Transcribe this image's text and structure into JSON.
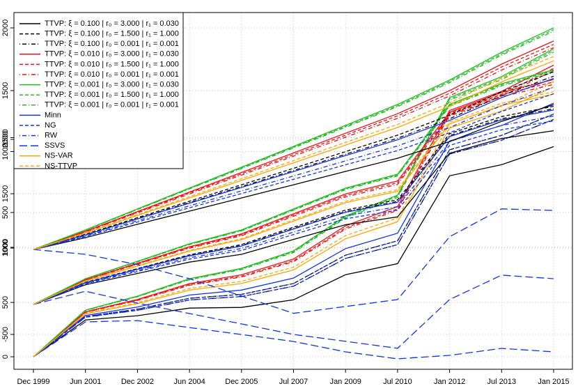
{
  "chart_data": [
    {
      "type": "line",
      "categories": [
        "Dec 1999",
        "Jun 2001",
        "Dec 2002",
        "Jun 2004",
        "Dec 2005",
        "Jul 2007",
        "Jan 2009",
        "Jul 2010",
        "Jan 2012",
        "Jul 2013",
        "Jan 2015"
      ],
      "ylim": [
        -115,
        3167
      ],
      "yticks": [
        0,
        500,
        1000,
        1500,
        2000
      ],
      "grid": true,
      "legend": "top-left",
      "series": [
        {
          "name": "TTVP: ξ = 0.100 | r₀ = 3.000 | r₁ = 0.030",
          "color": "#000000",
          "dash": "solid",
          "values": [
            0,
            339,
            378,
            448,
            454,
            524,
            755,
            857,
            1665,
            1767,
            1933
          ]
        },
        {
          "name": "TTVP: ξ = 0.100 | r₀ = 1.500 | r₁ = 1.000",
          "color": "#000000",
          "dash": "dashed",
          "values": [
            0,
            369,
            438,
            538,
            574,
            674,
            935,
            1067,
            1905,
            2037,
            2233
          ]
        },
        {
          "name": "TTVP: ξ = 0.100 | r₀ = 0.001 | r₁ = 0.001",
          "color": "#000000",
          "dash": "dotdash",
          "values": [
            0,
            364,
            428,
            523,
            554,
            649,
            905,
            1032,
            1865,
            1992,
            2183
          ]
        },
        {
          "name": "TTVP: ξ = 0.010 | r₀ = 3.000 | r₁ = 0.030",
          "color": "#ee1111",
          "dash": "solid",
          "values": [
            0,
            414,
            528,
            673,
            754,
            899,
            1205,
            1382,
            2265,
            2442,
            2683
          ]
        },
        {
          "name": "TTVP: ξ = 0.010 | r₀ = 1.500 | r₁ = 1.000",
          "color": "#ee1111",
          "dash": "dashed",
          "values": [
            0,
            411,
            522,
            664,
            742,
            884,
            1187,
            1361,
            2241,
            2415,
            2653
          ]
        },
        {
          "name": "TTVP: ξ = 0.010 | r₀ = 0.001 | r₁ = 0.001",
          "color": "#ee1111",
          "dash": "dotdash",
          "values": [
            0,
            409,
            518,
            658,
            734,
            874,
            1175,
            1347,
            2225,
            2397,
            2633
          ]
        },
        {
          "name": "TTVP: ξ = 0.001 | r₀ = 3.000 | r₁ = 0.030",
          "color": "#22bb22",
          "dash": "solid",
          "values": [
            0,
            429,
            558,
            718,
            814,
            974,
            1295,
            1487,
            2385,
            2577,
            2833
          ]
        },
        {
          "name": "TTVP: ξ = 0.001 | r₀ = 1.500 | r₁ = 1.000",
          "color": "#22bb22",
          "dash": "dashed",
          "values": [
            0,
            428,
            555,
            714,
            808,
            967,
            1286,
            1477,
            2373,
            2564,
            2818
          ]
        },
        {
          "name": "TTVP: ξ = 0.001 | r₀ = 0.001 | r₁ = 0.001",
          "color": "#22bb22",
          "dash": "dotdash",
          "values": [
            0,
            426,
            552,
            709,
            802,
            959,
            1277,
            1466,
            2361,
            2550,
            2803
          ]
        },
        {
          "name": "Minn",
          "color": "#1133ee",
          "dash": "solid",
          "values": [
            0,
            379,
            458,
            568,
            614,
            724,
            995,
            1137,
            1985,
            2127,
            2333
          ]
        },
        {
          "name": "NG",
          "color": "#1133ee",
          "dash": "dashed",
          "values": [
            0,
            364,
            428,
            523,
            554,
            649,
            905,
            1032,
            1865,
            1992,
            2183
          ]
        },
        {
          "name": "RW",
          "color": "#1133ee",
          "dash": "dotdash",
          "values": [
            0,
            369,
            438,
            538,
            574,
            674,
            935,
            1067,
            1905,
            2037,
            2233
          ]
        },
        {
          "name": "SSVS",
          "color": "#1133ee",
          "dash": "longdash",
          "values": [
            0,
            321,
            333,
            269,
            205,
            141,
            45,
            -19,
            13,
            77,
            45
          ]
        },
        {
          "name": "NS-VAR",
          "color": "#ffa500",
          "dash": "solid",
          "values": [
            0,
            394,
            488,
            613,
            674,
            799,
            1085,
            1242,
            2105,
            2262,
            2483
          ]
        },
        {
          "name": "NS-TTVP",
          "color": "#ffa500",
          "dash": "dashed",
          "values": [
            0,
            399,
            498,
            628,
            694,
            824,
            1115,
            1277,
            2145,
            2307,
            2533
          ]
        }
      ]
    },
    {
      "type": "line",
      "ylim": [
        -786,
        2140
      ],
      "yticks": [
        -500,
        500,
        1000,
        1500
      ],
      "series": [
        {
          "values": [
            -254,
            -93,
            0,
            93,
            157,
            279,
            400,
            464,
            986,
            1107,
            1171
          ]
        },
        {
          "values": [
            -254,
            -73,
            40,
            153,
            237,
            379,
            520,
            604,
            1146,
            1287,
            1371
          ]
        },
        {
          "values": [
            -254,
            -75,
            36,
            147,
            229,
            369,
            508,
            590,
            1130,
            1269,
            1351
          ]
        },
        {
          "values": [
            -254,
            -51,
            84,
            219,
            325,
            489,
            652,
            758,
            1322,
            1485,
            1591
          ]
        },
        {
          "values": [
            -254,
            -53,
            80,
            213,
            317,
            479,
            640,
            744,
            1306,
            1467,
            1571
          ]
        },
        {
          "values": [
            -254,
            -55,
            76,
            207,
            309,
            469,
            628,
            730,
            1290,
            1449,
            1551
          ]
        },
        {
          "values": [
            -254,
            -43,
            100,
            243,
            357,
            529,
            700,
            814,
            1386,
            1557,
            1671
          ]
        },
        {
          "values": [
            -254,
            -44,
            98,
            240,
            353,
            524,
            694,
            807,
            1378,
            1548,
            1661
          ]
        },
        {
          "values": [
            -254,
            -45,
            96,
            237,
            349,
            519,
            688,
            800,
            1370,
            1539,
            1651
          ]
        },
        {
          "values": [
            -254,
            -76,
            34,
            144,
            225,
            364,
            502,
            583,
            1122,
            1260,
            1341
          ]
        },
        {
          "values": [
            -254,
            -85,
            16,
            117,
            189,
            319,
            448,
            520,
            1050,
            1179,
            1251
          ]
        },
        {
          "values": [
            -254,
            -81,
            24,
            129,
            205,
            339,
            472,
            548,
            1082,
            1215,
            1291
          ]
        },
        {
          "values": [
            -254,
            -146,
            -243,
            -329,
            -414,
            -500,
            -557,
            -614,
            -214,
            -14,
            -43
          ]
        },
        {
          "values": [
            -254,
            -63,
            60,
            183,
            277,
            429,
            580,
            674,
            1226,
            1377,
            1471
          ]
        },
        {
          "values": [
            -254,
            -61,
            64,
            189,
            285,
            439,
            592,
            688,
            1242,
            1395,
            1491
          ]
        }
      ]
    },
    {
      "type": "line",
      "ylim": [
        444,
        2070
      ],
      "yticks": [
        1000,
        1500,
        2000
      ],
      "series": [
        {
          "values": [
            990,
            1044,
            1105,
            1165,
            1225,
            1285,
            1346,
            1406,
            1482,
            1574,
            1650
          ]
        },
        {
          "values": [
            990,
            1059,
            1135,
            1210,
            1285,
            1360,
            1436,
            1511,
            1602,
            1709,
            1800
          ]
        },
        {
          "values": [
            990,
            1057,
            1131,
            1204,
            1277,
            1350,
            1424,
            1497,
            1586,
            1691,
            1780
          ]
        },
        {
          "values": [
            990,
            1073,
            1163,
            1252,
            1341,
            1430,
            1520,
            1609,
            1714,
            1835,
            1940
          ]
        },
        {
          "values": [
            990,
            1072,
            1160,
            1248,
            1335,
            1422,
            1511,
            1599,
            1702,
            1822,
            1925
          ]
        },
        {
          "values": [
            990,
            1070,
            1157,
            1243,
            1329,
            1415,
            1502,
            1588,
            1690,
            1808,
            1910
          ]
        },
        {
          "values": [
            990,
            1079,
            1175,
            1270,
            1365,
            1460,
            1556,
            1651,
            1762,
            1889,
            2000
          ]
        },
        {
          "values": [
            990,
            1078,
            1173,
            1268,
            1362,
            1456,
            1551,
            1645,
            1756,
            1882,
            1992
          ]
        },
        {
          "values": [
            990,
            1078,
            1172,
            1266,
            1359,
            1453,
            1547,
            1641,
            1750,
            1876,
            1985
          ]
        },
        {
          "values": [
            990,
            1056,
            1129,
            1201,
            1273,
            1345,
            1418,
            1490,
            1578,
            1682,
            1770
          ]
        },
        {
          "values": [
            990,
            1049,
            1115,
            1180,
            1245,
            1310,
            1376,
            1441,
            1522,
            1619,
            1700
          ]
        },
        {
          "values": [
            990,
            1052,
            1121,
            1189,
            1257,
            1325,
            1394,
            1462,
            1546,
            1646,
            1730
          ]
        },
        {
          "values": [
            990,
            968,
            921,
            857,
            778,
            699,
            730,
            762,
            1048,
            1175,
            1168
          ]
        },
        {
          "values": [
            990,
            1064,
            1145,
            1225,
            1305,
            1385,
            1466,
            1546,
            1642,
            1754,
            1850
          ]
        },
        {
          "values": [
            990,
            1066,
            1149,
            1231,
            1313,
            1395,
            1478,
            1560,
            1658,
            1772,
            1870
          ]
        }
      ]
    }
  ]
}
